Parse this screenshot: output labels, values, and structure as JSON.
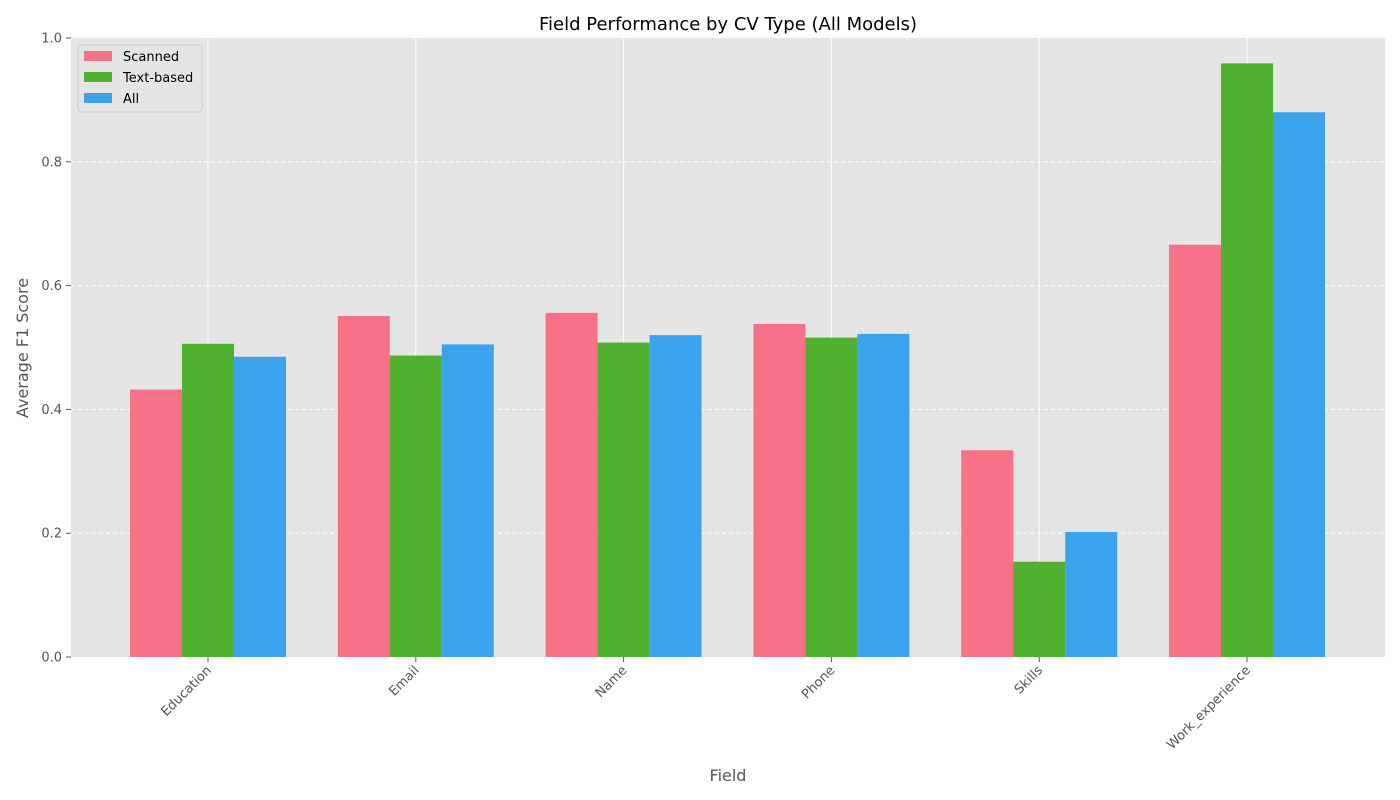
{
  "chart_data": {
    "type": "bar",
    "title": "Field Performance by CV Type (All Models)",
    "xlabel": "Field",
    "ylabel": "Average F1 Score",
    "ylim": [
      0,
      1.0
    ],
    "yticks": [
      "0.0",
      "0.2",
      "0.4",
      "0.6",
      "0.8",
      "1.0"
    ],
    "categories": [
      "Education",
      "Email",
      "Name",
      "Phone",
      "Skills",
      "Work_experience"
    ],
    "series": [
      {
        "name": "Scanned",
        "color": "#f77189",
        "values": [
          0.432,
          0.551,
          0.556,
          0.538,
          0.334,
          0.666
        ]
      },
      {
        "name": "Text-based",
        "color": "#50b131",
        "values": [
          0.506,
          0.487,
          0.508,
          0.516,
          0.154,
          0.959
        ]
      },
      {
        "name": "All",
        "color": "#3ba3ec",
        "values": [
          0.485,
          0.505,
          0.52,
          0.522,
          0.202,
          0.88
        ]
      }
    ],
    "grid": true,
    "legend": "top-left",
    "plot_background": "#e5e5e5"
  }
}
